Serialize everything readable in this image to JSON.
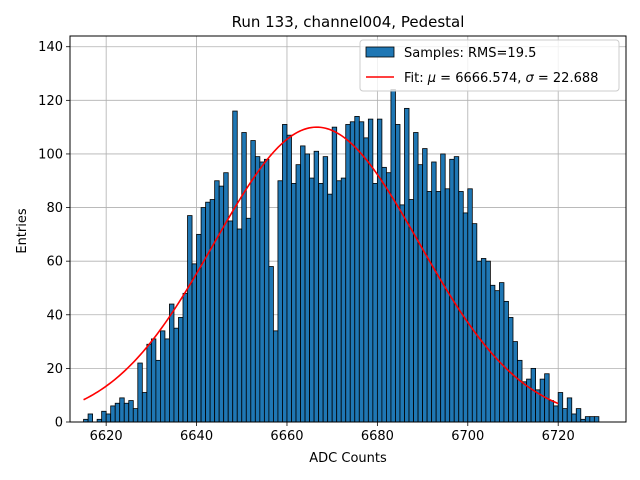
{
  "chart_data": {
    "type": "bar",
    "title": "Run 133, channel004, Pedestal",
    "xlabel": "ADC Counts",
    "ylabel": "Entries",
    "xlim": [
      6612,
      6735
    ],
    "ylim": [
      0,
      144
    ],
    "grid": true,
    "legend_position": "top-right",
    "x_ticks": [
      6620,
      6640,
      6660,
      6680,
      6700,
      6720
    ],
    "y_ticks": [
      0,
      20,
      40,
      60,
      80,
      100,
      120,
      140
    ],
    "histogram": {
      "name": "Samples: RMS=19.5",
      "color": "#1f77b4",
      "bin_start": 6615,
      "bin_width": 1,
      "counts": [
        1,
        3,
        0,
        1,
        4,
        3,
        6,
        7,
        9,
        7,
        8,
        5,
        22,
        11,
        29,
        31,
        23,
        34,
        31,
        44,
        35,
        39,
        48,
        77,
        59,
        70,
        80,
        82,
        83,
        90,
        88,
        93,
        75,
        116,
        72,
        108,
        76,
        105,
        99,
        97,
        98,
        58,
        34,
        90,
        111,
        107,
        89,
        96,
        103,
        100,
        91,
        101,
        89,
        99,
        85,
        110,
        90,
        91,
        111,
        112,
        114,
        112,
        106,
        113,
        89,
        113,
        95,
        93,
        124,
        111,
        81,
        117,
        83,
        108,
        96,
        102,
        86,
        97,
        86,
        100,
        87,
        98,
        99,
        86,
        78,
        87,
        74,
        60,
        61,
        60,
        51,
        49,
        52,
        45,
        39,
        30,
        23,
        15,
        16,
        20,
        12,
        16,
        18,
        8,
        6,
        11,
        5,
        9,
        3,
        5,
        1,
        2,
        2,
        2
      ]
    },
    "fit": {
      "name": "Fit: μ = 6666.574, σ = 22.688",
      "color": "#ff0000",
      "mu": 6666.574,
      "sigma": 22.688,
      "amplitude": 110,
      "x_range": [
        6615,
        6720
      ]
    }
  },
  "legend": {
    "entries": [
      {
        "label": "Samples: RMS=19.5",
        "kind": "bar"
      },
      {
        "label": "Fit: μ = 6666.574, σ = 22.688",
        "kind": "line"
      }
    ]
  }
}
